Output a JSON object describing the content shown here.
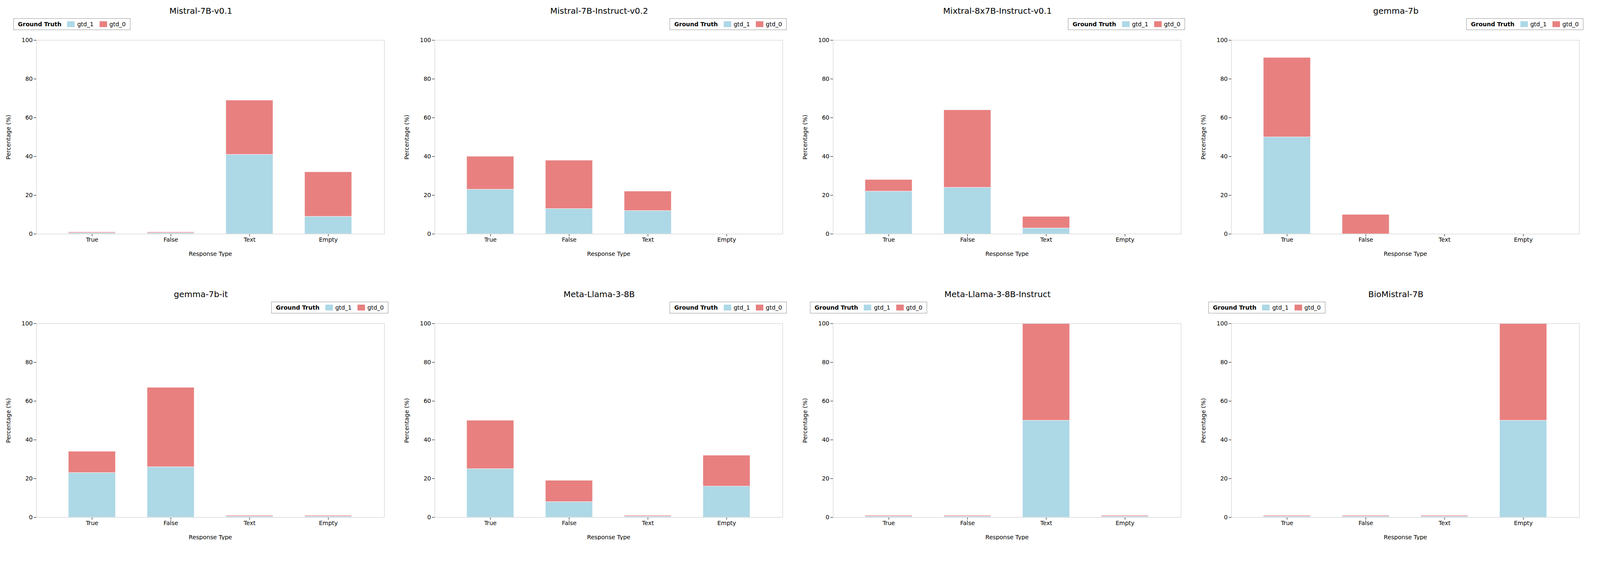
{
  "chart_data": [
    {
      "type": "bar",
      "title": "Mistral-7B-v0.1",
      "xlabel": "Response Type",
      "ylabel": "Percentage (%)",
      "categories": [
        "True",
        "False",
        "Text",
        "Empty"
      ],
      "series": [
        {
          "name": "gtd_1",
          "color": "#add8e6",
          "values": [
            0.5,
            0.5,
            41,
            9
          ]
        },
        {
          "name": "gtd_0",
          "color": "#e88080",
          "values": [
            0.5,
            0.5,
            28,
            23
          ]
        }
      ],
      "stacked": true,
      "ylim": [
        0,
        100
      ],
      "yticks": [
        0,
        20,
        40,
        60,
        80,
        100
      ],
      "grid": false,
      "legend": "upper left",
      "legend_title": "Ground Truth"
    },
    {
      "type": "bar",
      "title": "Mistral-7B-Instruct-v0.2",
      "xlabel": "Response Type",
      "ylabel": "Percentage (%)",
      "categories": [
        "True",
        "False",
        "Text",
        "Empty"
      ],
      "series": [
        {
          "name": "gtd_1",
          "color": "#add8e6",
          "values": [
            23,
            13,
            12,
            0
          ]
        },
        {
          "name": "gtd_0",
          "color": "#e88080",
          "values": [
            17,
            25,
            10,
            0
          ]
        }
      ],
      "stacked": true,
      "ylim": [
        0,
        100
      ],
      "yticks": [
        0,
        20,
        40,
        60,
        80,
        100
      ],
      "grid": false,
      "legend": "upper right",
      "legend_title": "Ground Truth"
    },
    {
      "type": "bar",
      "title": "Mixtral-8x7B-Instruct-v0.1",
      "xlabel": "Response Type",
      "ylabel": "Percentage (%)",
      "categories": [
        "True",
        "False",
        "Text",
        "Empty"
      ],
      "series": [
        {
          "name": "gtd_1",
          "color": "#add8e6",
          "values": [
            22,
            24,
            3,
            0
          ]
        },
        {
          "name": "gtd_0",
          "color": "#e88080",
          "values": [
            6,
            40,
            6,
            0
          ]
        }
      ],
      "stacked": true,
      "ylim": [
        0,
        100
      ],
      "yticks": [
        0,
        20,
        40,
        60,
        80,
        100
      ],
      "grid": false,
      "legend": "upper right",
      "legend_title": "Ground Truth"
    },
    {
      "type": "bar",
      "title": "gemma-7b",
      "xlabel": "Response Type",
      "ylabel": "Percentage (%)",
      "categories": [
        "True",
        "False",
        "Text",
        "Empty"
      ],
      "series": [
        {
          "name": "gtd_1",
          "color": "#add8e6",
          "values": [
            50,
            0,
            0,
            0
          ]
        },
        {
          "name": "gtd_0",
          "color": "#e88080",
          "values": [
            41,
            10,
            0,
            0
          ]
        }
      ],
      "stacked": true,
      "ylim": [
        0,
        100
      ],
      "yticks": [
        0,
        20,
        40,
        60,
        80,
        100
      ],
      "grid": false,
      "legend": "upper right",
      "legend_title": "Ground Truth"
    },
    {
      "type": "bar",
      "title": "gemma-7b-it",
      "xlabel": "Response Type",
      "ylabel": "Percentage (%)",
      "categories": [
        "True",
        "False",
        "Text",
        "Empty"
      ],
      "series": [
        {
          "name": "gtd_1",
          "color": "#add8e6",
          "values": [
            23,
            26,
            0.5,
            0.5
          ]
        },
        {
          "name": "gtd_0",
          "color": "#e88080",
          "values": [
            11,
            41,
            0.5,
            0.5
          ]
        }
      ],
      "stacked": true,
      "ylim": [
        0,
        100
      ],
      "yticks": [
        0,
        20,
        40,
        60,
        80,
        100
      ],
      "grid": false,
      "legend": "upper right",
      "legend_title": "Ground Truth"
    },
    {
      "type": "bar",
      "title": "Meta-Llama-3-8B",
      "xlabel": "Response Type",
      "ylabel": "Percentage (%)",
      "categories": [
        "True",
        "False",
        "Text",
        "Empty"
      ],
      "series": [
        {
          "name": "gtd_1",
          "color": "#add8e6",
          "values": [
            25,
            8,
            0.5,
            16
          ]
        },
        {
          "name": "gtd_0",
          "color": "#e88080",
          "values": [
            25,
            11,
            0.5,
            16
          ]
        }
      ],
      "stacked": true,
      "ylim": [
        0,
        100
      ],
      "yticks": [
        0,
        20,
        40,
        60,
        80,
        100
      ],
      "grid": false,
      "legend": "upper right",
      "legend_title": "Ground Truth"
    },
    {
      "type": "bar",
      "title": "Meta-Llama-3-8B-Instruct",
      "xlabel": "Response Type",
      "ylabel": "Percentage (%)",
      "categories": [
        "True",
        "False",
        "Text",
        "Empty"
      ],
      "series": [
        {
          "name": "gtd_1",
          "color": "#add8e6",
          "values": [
            0.5,
            0.5,
            50,
            0.5
          ]
        },
        {
          "name": "gtd_0",
          "color": "#e88080",
          "values": [
            0.5,
            0.5,
            50,
            0.5
          ]
        }
      ],
      "stacked": true,
      "ylim": [
        0,
        100
      ],
      "yticks": [
        0,
        20,
        40,
        60,
        80,
        100
      ],
      "grid": false,
      "legend": "upper left",
      "legend_title": "Ground Truth"
    },
    {
      "type": "bar",
      "title": "BioMistral-7B",
      "xlabel": "Response Type",
      "ylabel": "Percentage (%)",
      "categories": [
        "True",
        "False",
        "Text",
        "Empty"
      ],
      "series": [
        {
          "name": "gtd_1",
          "color": "#add8e6",
          "values": [
            0.5,
            0.5,
            0.5,
            50
          ]
        },
        {
          "name": "gtd_0",
          "color": "#e88080",
          "values": [
            0.5,
            0.5,
            0.5,
            50
          ]
        }
      ],
      "stacked": true,
      "ylim": [
        0,
        100
      ],
      "yticks": [
        0,
        20,
        40,
        60,
        80,
        100
      ],
      "grid": false,
      "legend": "upper left",
      "legend_title": "Ground Truth"
    }
  ]
}
